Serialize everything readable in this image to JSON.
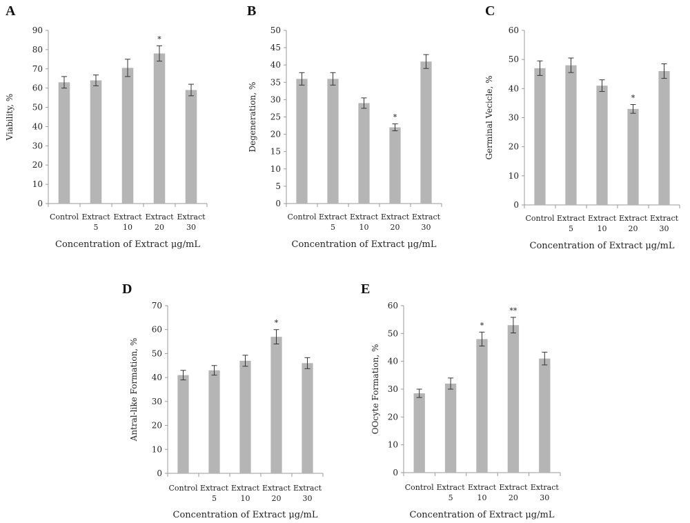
{
  "colors": {
    "bar": "#b5b5b5",
    "axis": "#9a9a9a",
    "text": "#222222",
    "errorbar": "#333333"
  },
  "chart_data": [
    {
      "type": "bar",
      "panel": "A",
      "categories": [
        [
          "Control"
        ],
        [
          "Extract",
          "5"
        ],
        [
          "Extract",
          "10"
        ],
        [
          "Extract",
          "20"
        ],
        [
          "Extract",
          "30"
        ]
      ],
      "values": [
        63,
        64,
        70.5,
        78,
        59
      ],
      "errors": [
        3,
        2.8,
        4.5,
        4,
        3
      ],
      "annotations": [
        "",
        "",
        "",
        "*",
        ""
      ],
      "xlabel": "Concentration of Extract μg/mL",
      "ylabel": "Viability, %",
      "ylim": [
        0,
        90
      ],
      "ticks": [
        0,
        10,
        20,
        30,
        40,
        50,
        60,
        70,
        80,
        90
      ],
      "grid": false
    },
    {
      "type": "bar",
      "panel": "B",
      "categories": [
        [
          "Control"
        ],
        [
          "Extract",
          "5"
        ],
        [
          "Extract",
          "10"
        ],
        [
          "Extract",
          "20"
        ],
        [
          "Extract",
          "30"
        ]
      ],
      "values": [
        36,
        36,
        29,
        22,
        41
      ],
      "errors": [
        1.8,
        1.8,
        1.5,
        1,
        2
      ],
      "annotations": [
        "",
        "",
        "",
        "*",
        ""
      ],
      "xlabel": "Concentration of Extract μg/mL",
      "ylabel": "Degeneration, %",
      "ylim": [
        0,
        50
      ],
      "ticks": [
        0,
        5,
        10,
        15,
        20,
        25,
        30,
        35,
        40,
        45,
        50
      ],
      "grid": false
    },
    {
      "type": "bar",
      "panel": "C",
      "categories": [
        [
          "Control"
        ],
        [
          "Extract",
          "5"
        ],
        [
          "Extract",
          "10"
        ],
        [
          "Extract",
          "20"
        ],
        [
          "Extract",
          "30"
        ]
      ],
      "values": [
        47,
        48,
        41,
        33,
        46
      ],
      "errors": [
        2.5,
        2.5,
        2,
        1.5,
        2.5
      ],
      "annotations": [
        "",
        "",
        "",
        "*",
        ""
      ],
      "xlabel": "Concentration of Extract μg/mL",
      "ylabel": "Germinal Vecicle, %",
      "ylim": [
        0,
        60
      ],
      "ticks": [
        0,
        10,
        20,
        30,
        40,
        50,
        60
      ],
      "grid": false
    },
    {
      "type": "bar",
      "panel": "D",
      "categories": [
        [
          "Control"
        ],
        [
          "Extract",
          "5"
        ],
        [
          "Extract",
          "10"
        ],
        [
          "Extract",
          "20"
        ],
        [
          "Extract",
          "30"
        ]
      ],
      "values": [
        41,
        43,
        47,
        57,
        46
      ],
      "errors": [
        2,
        2,
        2.3,
        3,
        2.3
      ],
      "annotations": [
        "",
        "",
        "",
        "*",
        ""
      ],
      "xlabel": "Concentration of Extract μg/mL",
      "ylabel": "Antral-like Formation, %",
      "ylim": [
        0,
        70
      ],
      "ticks": [
        0,
        10,
        20,
        30,
        40,
        50,
        60,
        70
      ],
      "grid": false
    },
    {
      "type": "bar",
      "panel": "E",
      "categories": [
        [
          "Control"
        ],
        [
          "Extract",
          "5"
        ],
        [
          "Extract",
          "10"
        ],
        [
          "Extract",
          "20"
        ],
        [
          "Extract",
          "30"
        ]
      ],
      "values": [
        28.5,
        32,
        48,
        53,
        41
      ],
      "errors": [
        1.5,
        2,
        2.5,
        2.8,
        2.3
      ],
      "annotations": [
        "",
        "",
        "*",
        "**",
        ""
      ],
      "xlabel": "Concentration of Extract μg/mL",
      "ylabel": "OOcyte Formation, %",
      "ylim": [
        0,
        60
      ],
      "ticks": [
        0,
        10,
        20,
        30,
        40,
        50,
        60
      ],
      "grid": false
    }
  ]
}
